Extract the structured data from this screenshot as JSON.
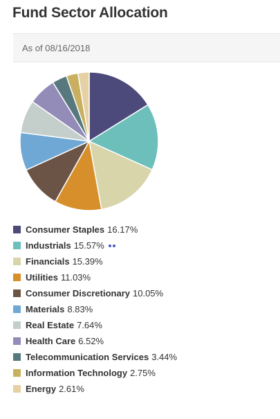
{
  "header": {
    "title": "Fund Sector Allocation",
    "as_of": "As of 08/16/2018"
  },
  "chart_data": {
    "type": "pie",
    "title": "Fund Sector Allocation",
    "categories": [
      "Consumer Staples",
      "Industrials",
      "Financials",
      "Utilities",
      "Consumer Discretionary",
      "Materials",
      "Real Estate",
      "Health Care",
      "Telecommunication Services",
      "Information Technology",
      "Energy"
    ],
    "values": [
      16.17,
      15.57,
      15.39,
      11.03,
      10.05,
      8.83,
      7.64,
      6.52,
      3.44,
      2.75,
      2.61
    ],
    "value_labels": [
      "16.17%",
      "15.57%",
      "15.39%",
      "11.03%",
      "10.05%",
      "8.83%",
      "7.64%",
      "6.52%",
      "3.44%",
      "2.75%",
      "2.61%"
    ],
    "colors": [
      "#4b4a7b",
      "#6cbfba",
      "#d8d5ab",
      "#d78f2b",
      "#6b5445",
      "#70a8d5",
      "#c4cecb",
      "#938cb8",
      "#57797d",
      "#c9b061",
      "#e6d1a6"
    ],
    "legend_position": "bottom",
    "start_angle": "top, clockwise"
  }
}
